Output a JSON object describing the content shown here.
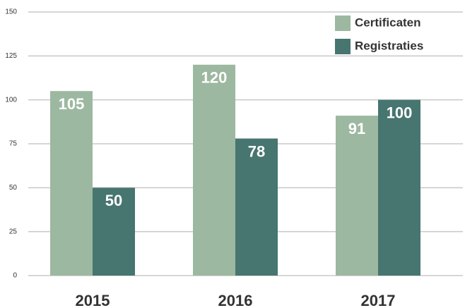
{
  "chart_data": {
    "type": "bar",
    "categories": [
      "2015",
      "2016",
      "2017"
    ],
    "series": [
      {
        "name": "Certificaten",
        "color": "#9db8a0",
        "values": [
          105,
          120,
          91
        ]
      },
      {
        "name": "Registraties",
        "color": "#477570",
        "values": [
          50,
          78,
          100
        ]
      }
    ],
    "ylim": [
      0,
      150
    ],
    "yticks": [
      0,
      25,
      50,
      75,
      100,
      125,
      150
    ],
    "grid": true,
    "legend": "top-right"
  }
}
